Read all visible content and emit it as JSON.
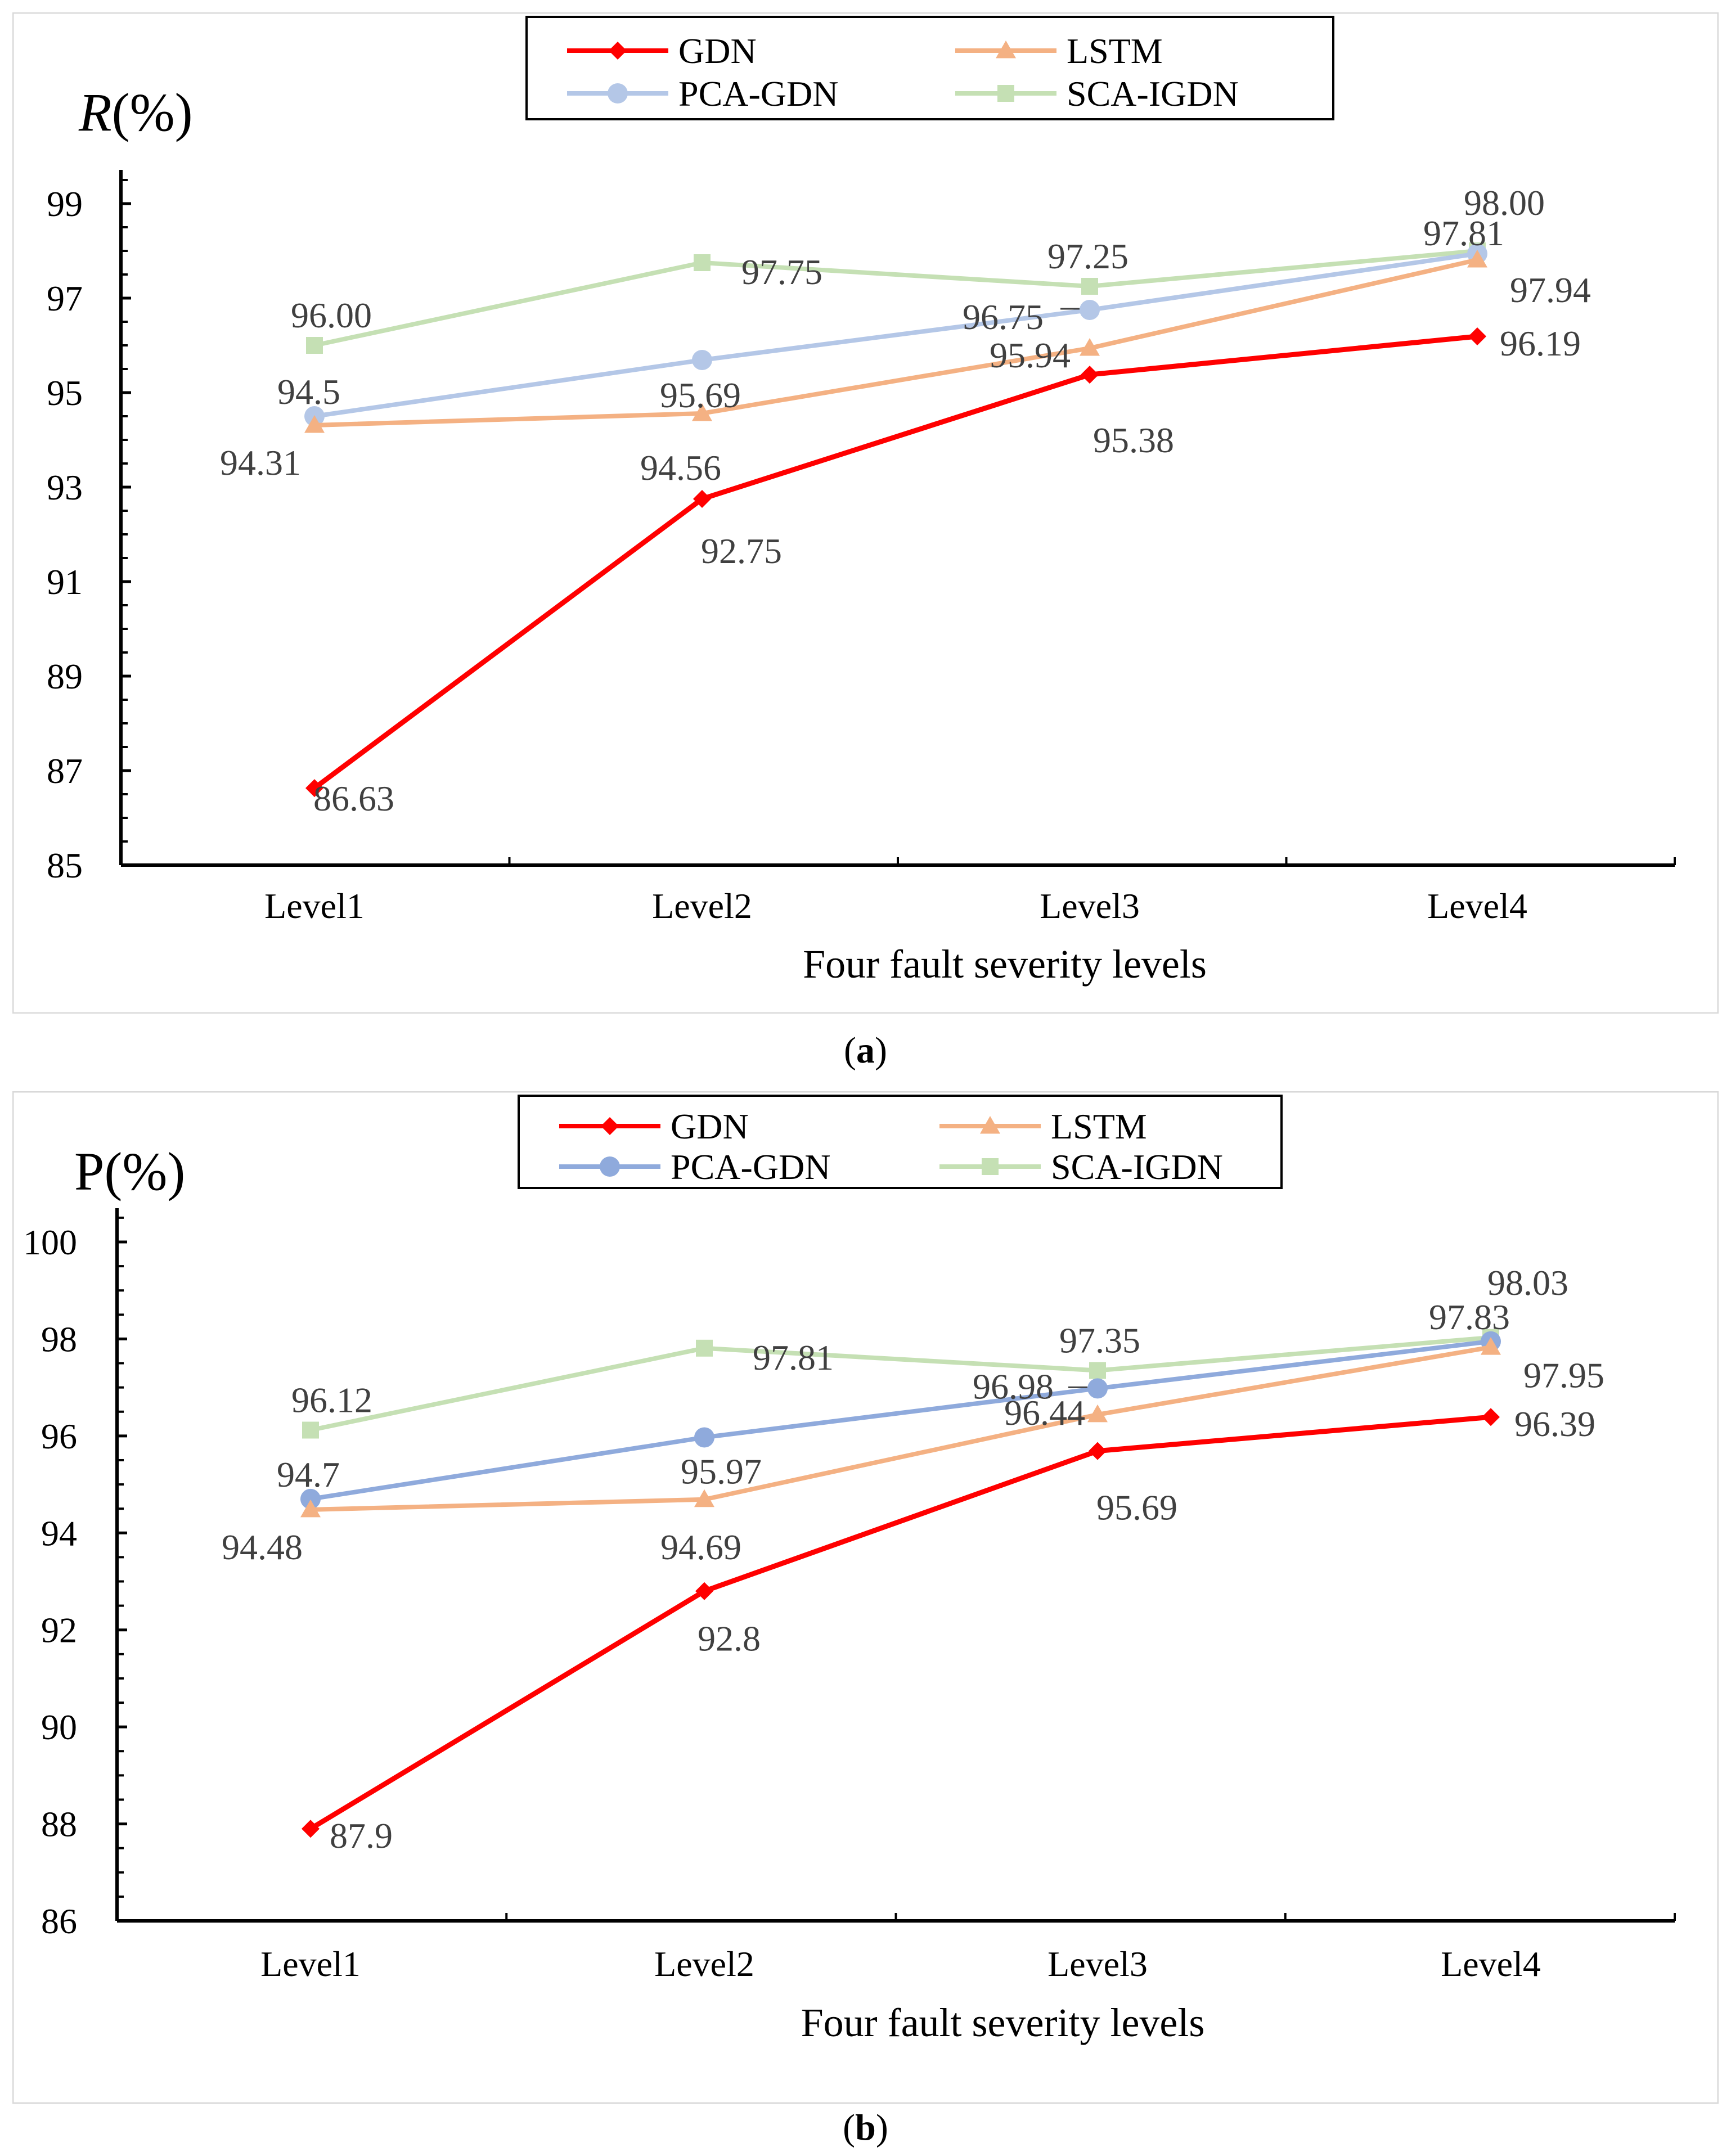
{
  "colors": {
    "GDN": "#ff0000",
    "LSTM": "#f4b183",
    "PCA-GDN_a": "#b4c7e7",
    "PCA-GDN_b": "#8faadc",
    "SCA-IGDN": "#c5e0b4"
  },
  "captions": {
    "a": "a",
    "b": "b"
  },
  "chart_data": [
    {
      "type": "line",
      "id": "a",
      "ylabel_italic": "R",
      "ylabel_rest": "(%)",
      "xlabel": "Four fault severity levels",
      "categories": [
        "Level1",
        "Level2",
        "Level3",
        "Level4"
      ],
      "ylim": [
        85,
        99
      ],
      "yticks": [
        "85",
        "87",
        "89",
        "91",
        "93",
        "95",
        "97",
        "99"
      ],
      "legend": [
        "GDN",
        "LSTM",
        "PCA-GDN",
        "SCA-IGDN"
      ],
      "series": [
        {
          "name": "GDN",
          "marker": "diamond",
          "values": [
            86.63,
            92.75,
            95.38,
            96.19
          ],
          "labels": [
            "86.63",
            "92.75",
            "95.38",
            "96.19"
          ]
        },
        {
          "name": "LSTM",
          "marker": "triangle",
          "values": [
            94.31,
            94.56,
            95.94,
            97.81
          ],
          "labels": [
            "94.31",
            "94.56",
            "95.94",
            "97.81"
          ]
        },
        {
          "name": "PCA-GDN",
          "marker": "circle",
          "values": [
            94.5,
            95.69,
            96.75,
            97.94
          ],
          "labels": [
            "94.5",
            "95.69",
            "96.75",
            "97.94"
          ]
        },
        {
          "name": "SCA-IGDN",
          "marker": "square",
          "values": [
            96.0,
            97.75,
            97.25,
            98.0
          ],
          "labels": [
            "96.00",
            "97.75",
            "97.25",
            "98.00"
          ]
        }
      ]
    },
    {
      "type": "line",
      "id": "b",
      "ylabel_italic": "",
      "ylabel_rest": "P(%)",
      "xlabel": "Four fault severity levels",
      "categories": [
        "Level1",
        "Level2",
        "Level3",
        "Level4"
      ],
      "ylim": [
        86,
        100
      ],
      "yticks": [
        "86",
        "88",
        "90",
        "92",
        "94",
        "96",
        "98",
        "100"
      ],
      "legend": [
        "GDN",
        "LSTM",
        "PCA-GDN",
        "SCA-IGDN"
      ],
      "series": [
        {
          "name": "GDN",
          "marker": "diamond",
          "values": [
            87.9,
            92.8,
            95.69,
            96.39
          ],
          "labels": [
            "87.9",
            "92.8",
            "95.69",
            "96.39"
          ]
        },
        {
          "name": "LSTM",
          "marker": "triangle",
          "values": [
            94.48,
            94.69,
            96.44,
            97.83
          ],
          "labels": [
            "94.48",
            "94.69",
            "96.44",
            "97.83"
          ]
        },
        {
          "name": "PCA-GDN",
          "marker": "circle",
          "values": [
            94.7,
            95.97,
            96.98,
            97.95
          ],
          "labels": [
            "94.7",
            "95.97",
            "96.98",
            "97.95"
          ]
        },
        {
          "name": "SCA-IGDN",
          "marker": "square",
          "values": [
            96.12,
            97.81,
            97.35,
            98.03
          ],
          "labels": [
            "96.12",
            "97.81",
            "97.35",
            "98.03"
          ]
        }
      ]
    }
  ]
}
